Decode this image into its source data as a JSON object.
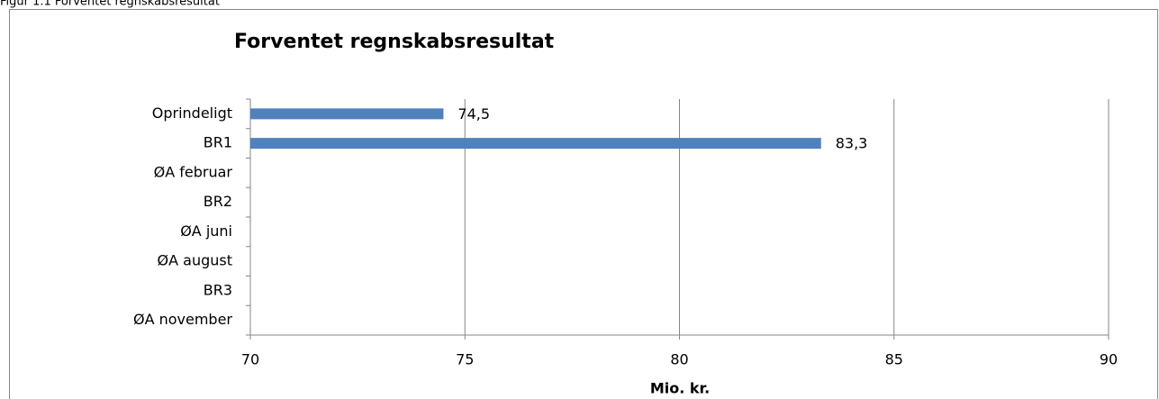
{
  "caption": "Figur 1.1 Forventet regnskabsresultat",
  "chart_data": {
    "type": "hbar",
    "title": "Forventet regnskabsresultat",
    "categories": [
      "Oprindeligt",
      "BR1",
      "ØA februar",
      "BR2",
      "ØA juni",
      "ØA august",
      "BR3",
      "ØA november"
    ],
    "values": [
      74.5,
      83.3,
      null,
      null,
      null,
      null,
      null,
      null
    ],
    "value_labels": [
      "74,5",
      "83,3",
      null,
      null,
      null,
      null,
      null,
      null
    ],
    "color": "#4f81bd",
    "xlim": [
      70,
      90
    ],
    "xticks": [
      70,
      75,
      80,
      85,
      90
    ],
    "grid": true,
    "xlabel": "Mio. kr."
  }
}
